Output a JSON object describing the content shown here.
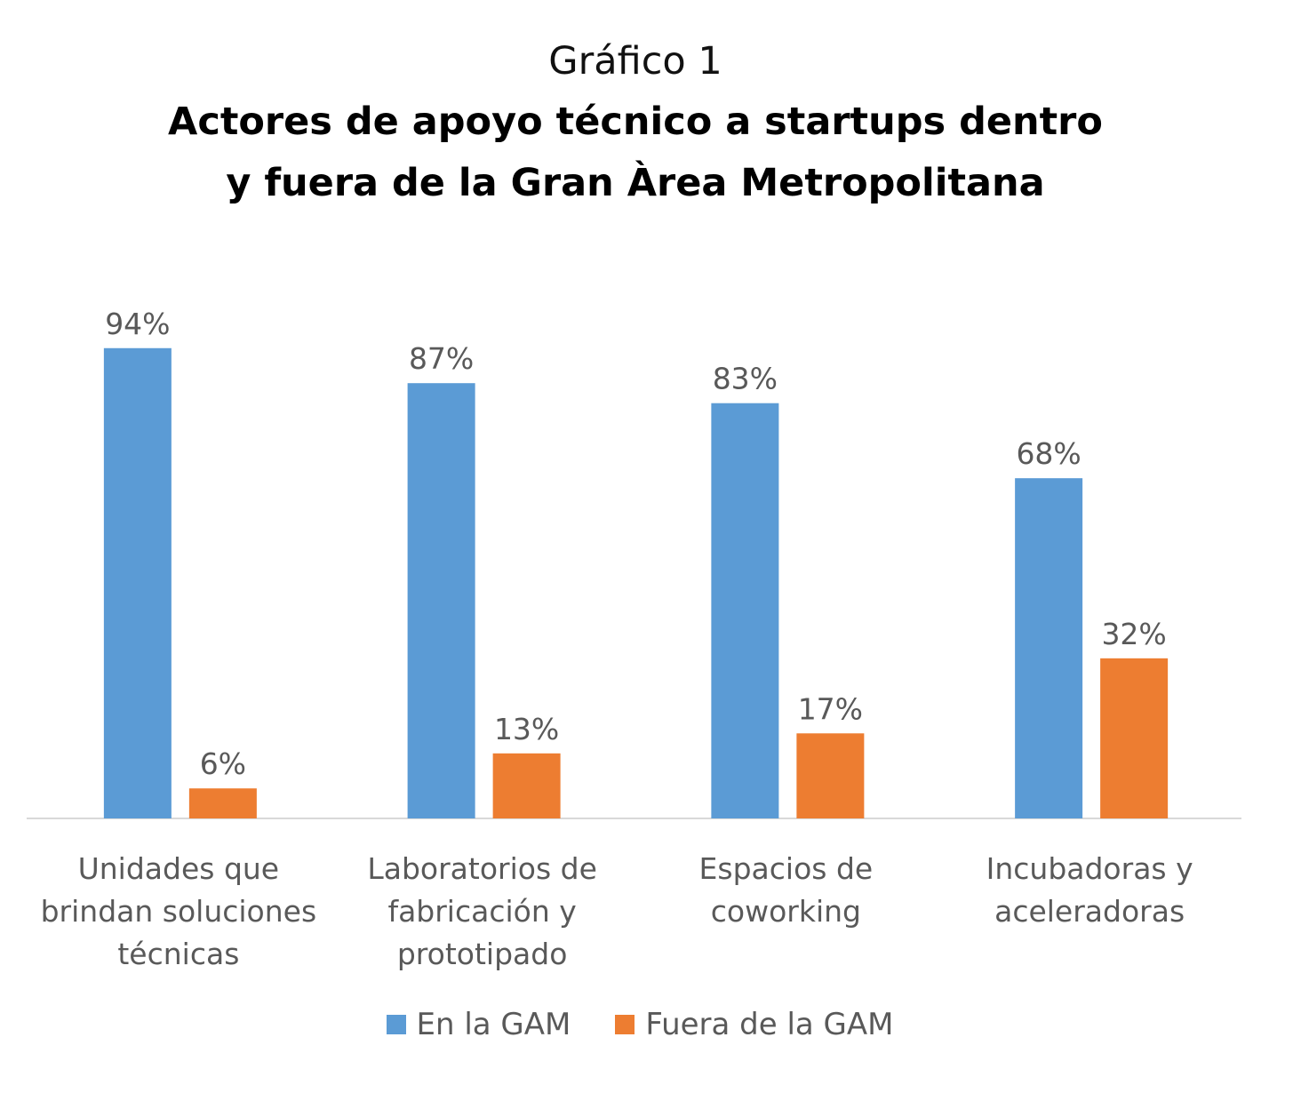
{
  "colors": {
    "series_1": "#5b9bd5",
    "series_2": "#ed7d31",
    "axis": "#d9d9d9",
    "label_text": "#595959"
  },
  "chart_data": {
    "type": "bar",
    "supertitle": "Gráfico 1",
    "title_lines": [
      "Actores de apoyo técnico a startups dentro",
      "y fuera de la Gran Àrea Metropolitana"
    ],
    "categories": [
      [
        "Unidades que",
        "brindan soluciones",
        "técnicas"
      ],
      [
        "Laboratorios de",
        "fabricación y",
        "prototipado"
      ],
      [
        "Espacios de",
        "coworking"
      ],
      [
        "Incubadoras y",
        "aceleradoras"
      ]
    ],
    "series": [
      {
        "name": "En la GAM",
        "values": [
          94,
          87,
          83,
          68
        ],
        "labels": [
          "94%",
          "87%",
          "83%",
          "68%"
        ]
      },
      {
        "name": "Fuera de la GAM",
        "values": [
          6,
          13,
          17,
          32
        ],
        "labels": [
          "6%",
          "13%",
          "17%",
          "32%"
        ]
      }
    ],
    "ylim": [
      0,
      100
    ],
    "grid": false,
    "legend_position": "bottom"
  }
}
